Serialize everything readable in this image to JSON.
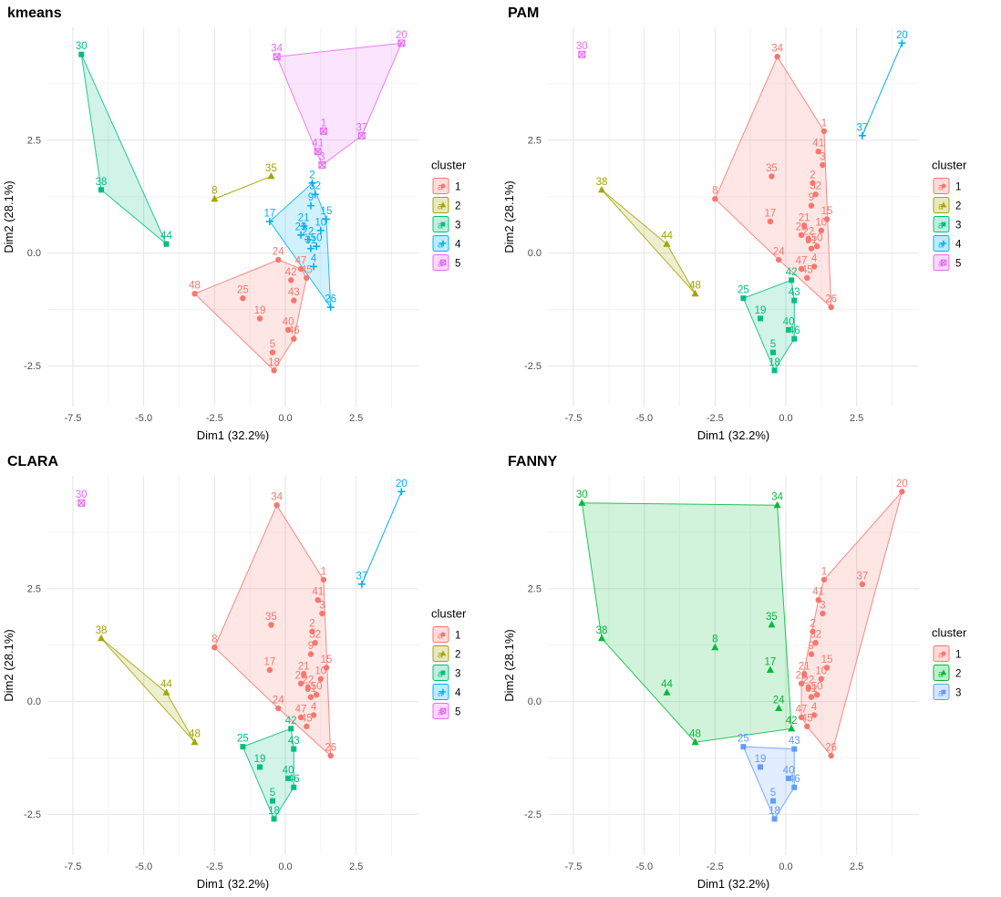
{
  "page": {
    "background": "#ffffff"
  },
  "chart_data": [
    {
      "type": "scatter",
      "title": "kmeans",
      "xlabel": "Dim1 (32.2%)",
      "ylabel": "Dim2 (28.1%)",
      "xlim": [
        -8.4,
        4.7
      ],
      "ylim": [
        -3.4,
        5.0
      ],
      "xticks": [
        -7.5,
        -5.0,
        -2.5,
        0.0,
        2.5
      ],
      "yticks": [
        -2.5,
        0.0,
        2.5
      ],
      "grid": true,
      "legend_title": "cluster",
      "legend_position": "right",
      "clusters": [
        {
          "name": "1",
          "color": "#F8766D",
          "shape": "circle",
          "points": [
            {
              "label": "48",
              "x": -3.2,
              "y": -0.9
            },
            {
              "label": "25",
              "x": -1.5,
              "y": -1.0
            },
            {
              "label": "19",
              "x": -0.9,
              "y": -1.45
            },
            {
              "label": "24",
              "x": -0.25,
              "y": -0.15
            },
            {
              "label": "42",
              "x": 0.2,
              "y": -0.6
            },
            {
              "label": "47",
              "x": 0.55,
              "y": -0.35
            },
            {
              "label": "45",
              "x": 0.75,
              "y": -0.55
            },
            {
              "label": "43",
              "x": 0.3,
              "y": -1.05
            },
            {
              "label": "40",
              "x": 0.1,
              "y": -1.7
            },
            {
              "label": "46",
              "x": 0.3,
              "y": -1.9
            },
            {
              "label": "5",
              "x": -0.45,
              "y": -2.2
            },
            {
              "label": "18",
              "x": -0.4,
              "y": -2.6
            }
          ]
        },
        {
          "name": "2",
          "color": "#A3A500",
          "shape": "triangle",
          "points": [
            {
              "label": "8",
              "x": -2.5,
              "y": 1.2
            },
            {
              "label": "35",
              "x": -0.5,
              "y": 1.7
            }
          ]
        },
        {
          "name": "3",
          "color": "#00BF7D",
          "shape": "square",
          "points": [
            {
              "label": "30",
              "x": -7.2,
              "y": 4.4
            },
            {
              "label": "38",
              "x": -6.5,
              "y": 1.4
            },
            {
              "label": "44",
              "x": -4.2,
              "y": 0.2
            }
          ]
        },
        {
          "name": "4",
          "color": "#00B0F6",
          "shape": "plus",
          "points": [
            {
              "label": "17",
              "x": -0.55,
              "y": 0.7
            },
            {
              "label": "2",
              "x": 0.95,
              "y": 1.55
            },
            {
              "label": "32",
              "x": 1.05,
              "y": 1.3
            },
            {
              "label": "9",
              "x": 0.9,
              "y": 1.05
            },
            {
              "label": "15",
              "x": 1.45,
              "y": 0.75
            },
            {
              "label": "21",
              "x": 0.65,
              "y": 0.6
            },
            {
              "label": "23",
              "x": 0.55,
              "y": 0.4
            },
            {
              "label": "22",
              "x": 0.8,
              "y": 0.3
            },
            {
              "label": "10",
              "x": 1.25,
              "y": 0.5
            },
            {
              "label": "50",
              "x": 1.1,
              "y": 0.15
            },
            {
              "label": "31",
              "x": 0.9,
              "y": 0.1
            },
            {
              "label": "4",
              "x": 1.0,
              "y": -0.3
            },
            {
              "label": "26",
              "x": 1.6,
              "y": -1.2
            }
          ]
        },
        {
          "name": "5",
          "color": "#E76BF3",
          "shape": "boxed-x",
          "points": [
            {
              "label": "34",
              "x": -0.3,
              "y": 4.35
            },
            {
              "label": "20",
              "x": 4.1,
              "y": 4.65
            },
            {
              "label": "1",
              "x": 1.35,
              "y": 2.7
            },
            {
              "label": "37",
              "x": 2.7,
              "y": 2.6
            },
            {
              "label": "41",
              "x": 1.15,
              "y": 2.25
            },
            {
              "label": "3",
              "x": 1.3,
              "y": 1.95
            }
          ]
        }
      ]
    },
    {
      "type": "scatter",
      "title": "PAM",
      "xlabel": "Dim1 (32.2%)",
      "ylabel": "Dim2 (28.1%)",
      "xlim": [
        -8.4,
        4.7
      ],
      "ylim": [
        -3.4,
        5.0
      ],
      "xticks": [
        -7.5,
        -5.0,
        -2.5,
        0.0,
        2.5
      ],
      "yticks": [
        -2.5,
        0.0,
        2.5
      ],
      "grid": true,
      "legend_title": "cluster",
      "legend_position": "right",
      "clusters": [
        {
          "name": "1",
          "color": "#F8766D",
          "shape": "circle",
          "points": [
            {
              "label": "34",
              "x": -0.3,
              "y": 4.35
            },
            {
              "label": "1",
              "x": 1.35,
              "y": 2.7
            },
            {
              "label": "41",
              "x": 1.15,
              "y": 2.25
            },
            {
              "label": "3",
              "x": 1.3,
              "y": 1.95
            },
            {
              "label": "35",
              "x": -0.5,
              "y": 1.7
            },
            {
              "label": "8",
              "x": -2.5,
              "y": 1.2
            },
            {
              "label": "17",
              "x": -0.55,
              "y": 0.7
            },
            {
              "label": "2",
              "x": 0.95,
              "y": 1.55
            },
            {
              "label": "32",
              "x": 1.05,
              "y": 1.3
            },
            {
              "label": "9",
              "x": 0.9,
              "y": 1.05
            },
            {
              "label": "15",
              "x": 1.45,
              "y": 0.75
            },
            {
              "label": "21",
              "x": 0.65,
              "y": 0.6
            },
            {
              "label": "23",
              "x": 0.55,
              "y": 0.4
            },
            {
              "label": "22",
              "x": 0.8,
              "y": 0.3
            },
            {
              "label": "10",
              "x": 1.25,
              "y": 0.5
            },
            {
              "label": "50",
              "x": 1.1,
              "y": 0.15
            },
            {
              "label": "31",
              "x": 0.9,
              "y": 0.1
            },
            {
              "label": "24",
              "x": -0.25,
              "y": -0.15
            },
            {
              "label": "4",
              "x": 1.0,
              "y": -0.3
            },
            {
              "label": "47",
              "x": 0.55,
              "y": -0.35
            },
            {
              "label": "45",
              "x": 0.75,
              "y": -0.55
            },
            {
              "label": "26",
              "x": 1.6,
              "y": -1.2
            }
          ]
        },
        {
          "name": "2",
          "color": "#A3A500",
          "shape": "triangle",
          "points": [
            {
              "label": "38",
              "x": -6.5,
              "y": 1.4
            },
            {
              "label": "44",
              "x": -4.2,
              "y": 0.2
            },
            {
              "label": "48",
              "x": -3.2,
              "y": -0.9
            }
          ]
        },
        {
          "name": "3",
          "color": "#00BF7D",
          "shape": "square",
          "points": [
            {
              "label": "25",
              "x": -1.5,
              "y": -1.0
            },
            {
              "label": "19",
              "x": -0.9,
              "y": -1.45
            },
            {
              "label": "42",
              "x": 0.2,
              "y": -0.6
            },
            {
              "label": "43",
              "x": 0.3,
              "y": -1.05
            },
            {
              "label": "40",
              "x": 0.1,
              "y": -1.7
            },
            {
              "label": "46",
              "x": 0.3,
              "y": -1.9
            },
            {
              "label": "5",
              "x": -0.45,
              "y": -2.2
            },
            {
              "label": "18",
              "x": -0.4,
              "y": -2.6
            }
          ]
        },
        {
          "name": "4",
          "color": "#00B0F6",
          "shape": "plus",
          "points": [
            {
              "label": "20",
              "x": 4.1,
              "y": 4.65
            },
            {
              "label": "37",
              "x": 2.7,
              "y": 2.6
            }
          ]
        },
        {
          "name": "5",
          "color": "#E76BF3",
          "shape": "boxed-x",
          "points": [
            {
              "label": "30",
              "x": -7.2,
              "y": 4.4
            }
          ]
        }
      ]
    },
    {
      "type": "scatter",
      "title": "CLARA",
      "xlabel": "Dim1 (32.2%)",
      "ylabel": "Dim2 (28.1%)",
      "xlim": [
        -8.4,
        4.7
      ],
      "ylim": [
        -3.4,
        5.0
      ],
      "xticks": [
        -7.5,
        -5.0,
        -2.5,
        0.0,
        2.5
      ],
      "yticks": [
        -2.5,
        0.0,
        2.5
      ],
      "grid": true,
      "legend_title": "cluster",
      "legend_position": "right",
      "clusters": [
        {
          "name": "1",
          "color": "#F8766D",
          "shape": "circle",
          "points": [
            {
              "label": "34",
              "x": -0.3,
              "y": 4.35
            },
            {
              "label": "1",
              "x": 1.35,
              "y": 2.7
            },
            {
              "label": "41",
              "x": 1.15,
              "y": 2.25
            },
            {
              "label": "3",
              "x": 1.3,
              "y": 1.95
            },
            {
              "label": "35",
              "x": -0.5,
              "y": 1.7
            },
            {
              "label": "8",
              "x": -2.5,
              "y": 1.2
            },
            {
              "label": "17",
              "x": -0.55,
              "y": 0.7
            },
            {
              "label": "2",
              "x": 0.95,
              "y": 1.55
            },
            {
              "label": "32",
              "x": 1.05,
              "y": 1.3
            },
            {
              "label": "9",
              "x": 0.9,
              "y": 1.05
            },
            {
              "label": "15",
              "x": 1.45,
              "y": 0.75
            },
            {
              "label": "21",
              "x": 0.65,
              "y": 0.6
            },
            {
              "label": "23",
              "x": 0.55,
              "y": 0.4
            },
            {
              "label": "22",
              "x": 0.8,
              "y": 0.3
            },
            {
              "label": "10",
              "x": 1.25,
              "y": 0.5
            },
            {
              "label": "50",
              "x": 1.1,
              "y": 0.15
            },
            {
              "label": "31",
              "x": 0.9,
              "y": 0.1
            },
            {
              "label": "24",
              "x": -0.25,
              "y": -0.15
            },
            {
              "label": "4",
              "x": 1.0,
              "y": -0.3
            },
            {
              "label": "47",
              "x": 0.55,
              "y": -0.35
            },
            {
              "label": "45",
              "x": 0.75,
              "y": -0.55
            },
            {
              "label": "26",
              "x": 1.6,
              "y": -1.2
            }
          ]
        },
        {
          "name": "2",
          "color": "#A3A500",
          "shape": "triangle",
          "points": [
            {
              "label": "38",
              "x": -6.5,
              "y": 1.4
            },
            {
              "label": "44",
              "x": -4.2,
              "y": 0.2
            },
            {
              "label": "48",
              "x": -3.2,
              "y": -0.9
            }
          ]
        },
        {
          "name": "3",
          "color": "#00BF7D",
          "shape": "square",
          "points": [
            {
              "label": "25",
              "x": -1.5,
              "y": -1.0
            },
            {
              "label": "19",
              "x": -0.9,
              "y": -1.45
            },
            {
              "label": "42",
              "x": 0.2,
              "y": -0.6
            },
            {
              "label": "43",
              "x": 0.3,
              "y": -1.05
            },
            {
              "label": "40",
              "x": 0.1,
              "y": -1.7
            },
            {
              "label": "46",
              "x": 0.3,
              "y": -1.9
            },
            {
              "label": "5",
              "x": -0.45,
              "y": -2.2
            },
            {
              "label": "18",
              "x": -0.4,
              "y": -2.6
            }
          ]
        },
        {
          "name": "4",
          "color": "#00B0F6",
          "shape": "plus",
          "points": [
            {
              "label": "20",
              "x": 4.1,
              "y": 4.65
            },
            {
              "label": "37",
              "x": 2.7,
              "y": 2.6
            }
          ]
        },
        {
          "name": "5",
          "color": "#E76BF3",
          "shape": "boxed-x",
          "points": [
            {
              "label": "30",
              "x": -7.2,
              "y": 4.4
            }
          ]
        }
      ]
    },
    {
      "type": "scatter",
      "title": "FANNY",
      "xlabel": "Dim1 (32.2%)",
      "ylabel": "Dim2 (28.1%)",
      "xlim": [
        -8.4,
        4.7
      ],
      "ylim": [
        -3.4,
        5.0
      ],
      "xticks": [
        -7.5,
        -5.0,
        -2.5,
        0.0,
        2.5
      ],
      "yticks": [
        -2.5,
        0.0,
        2.5
      ],
      "grid": true,
      "legend_title": "cluster",
      "legend_position": "right",
      "clusters": [
        {
          "name": "1",
          "color": "#F8766D",
          "shape": "circle",
          "points": [
            {
              "label": "20",
              "x": 4.1,
              "y": 4.65
            },
            {
              "label": "1",
              "x": 1.35,
              "y": 2.7
            },
            {
              "label": "37",
              "x": 2.7,
              "y": 2.6
            },
            {
              "label": "41",
              "x": 1.15,
              "y": 2.25
            },
            {
              "label": "3",
              "x": 1.3,
              "y": 1.95
            },
            {
              "label": "2",
              "x": 0.95,
              "y": 1.55
            },
            {
              "label": "32",
              "x": 1.05,
              "y": 1.3
            },
            {
              "label": "9",
              "x": 0.9,
              "y": 1.05
            },
            {
              "label": "15",
              "x": 1.45,
              "y": 0.75
            },
            {
              "label": "21",
              "x": 0.65,
              "y": 0.6
            },
            {
              "label": "23",
              "x": 0.55,
              "y": 0.4
            },
            {
              "label": "22",
              "x": 0.8,
              "y": 0.3
            },
            {
              "label": "10",
              "x": 1.25,
              "y": 0.5
            },
            {
              "label": "50",
              "x": 1.1,
              "y": 0.15
            },
            {
              "label": "31",
              "x": 0.9,
              "y": 0.1
            },
            {
              "label": "4",
              "x": 1.0,
              "y": -0.3
            },
            {
              "label": "47",
              "x": 0.55,
              "y": -0.35
            },
            {
              "label": "45",
              "x": 0.75,
              "y": -0.55
            },
            {
              "label": "26",
              "x": 1.6,
              "y": -1.2
            }
          ]
        },
        {
          "name": "2",
          "color": "#00BA38",
          "shape": "triangle",
          "points": [
            {
              "label": "30",
              "x": -7.2,
              "y": 4.4
            },
            {
              "label": "34",
              "x": -0.3,
              "y": 4.35
            },
            {
              "label": "38",
              "x": -6.5,
              "y": 1.4
            },
            {
              "label": "8",
              "x": -2.5,
              "y": 1.2
            },
            {
              "label": "35",
              "x": -0.5,
              "y": 1.7
            },
            {
              "label": "44",
              "x": -4.2,
              "y": 0.2
            },
            {
              "label": "17",
              "x": -0.55,
              "y": 0.7
            },
            {
              "label": "48",
              "x": -3.2,
              "y": -0.9
            },
            {
              "label": "24",
              "x": -0.25,
              "y": -0.15
            },
            {
              "label": "42",
              "x": 0.2,
              "y": -0.6
            }
          ]
        },
        {
          "name": "3",
          "color": "#619CFF",
          "shape": "square",
          "points": [
            {
              "label": "25",
              "x": -1.5,
              "y": -1.0
            },
            {
              "label": "19",
              "x": -0.9,
              "y": -1.45
            },
            {
              "label": "43",
              "x": 0.3,
              "y": -1.05
            },
            {
              "label": "40",
              "x": 0.1,
              "y": -1.7
            },
            {
              "label": "46",
              "x": 0.3,
              "y": -1.9
            },
            {
              "label": "5",
              "x": -0.45,
              "y": -2.2
            },
            {
              "label": "18",
              "x": -0.4,
              "y": -2.6
            }
          ]
        }
      ]
    }
  ]
}
